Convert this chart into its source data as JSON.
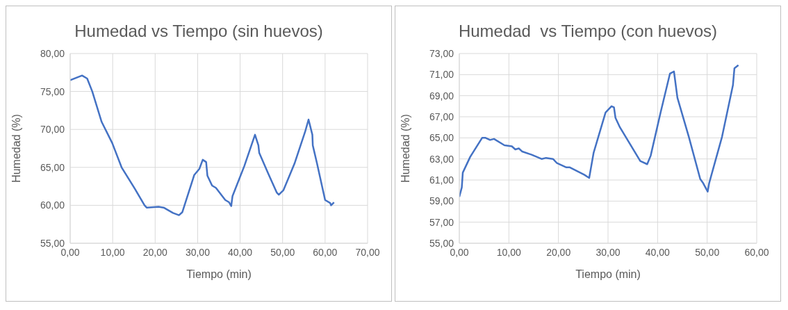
{
  "chart_data": [
    {
      "type": "line",
      "title": "Humedad vs Tiempo (sin huevos)",
      "xlabel": "Tiempo  (min)",
      "ylabel": "Humedad (%)",
      "color": "#4472c4",
      "grid": true,
      "legend": false,
      "marker": "none",
      "line_style": "solid",
      "xlim": [
        0,
        70
      ],
      "xticks": [
        {
          "value": 0,
          "label": "0,00"
        },
        {
          "value": 10,
          "label": "10,00"
        },
        {
          "value": 20,
          "label": "20,00"
        },
        {
          "value": 30,
          "label": "30,00"
        },
        {
          "value": 40,
          "label": "40,00"
        },
        {
          "value": 50,
          "label": "50,00"
        },
        {
          "value": 60,
          "label": "60,00"
        },
        {
          "value": 70,
          "label": "70,00"
        }
      ],
      "ylim": [
        55,
        80
      ],
      "yticks": [
        {
          "value": 55,
          "label": "55,00"
        },
        {
          "value": 60,
          "label": "60,00"
        },
        {
          "value": 65,
          "label": "65,00"
        },
        {
          "value": 70,
          "label": "70,00"
        },
        {
          "value": 75,
          "label": "75,00"
        },
        {
          "value": 80,
          "label": "80,00"
        }
      ],
      "x": [
        0,
        2.8,
        4.0,
        5.2,
        7.4,
        9.9,
        12.1,
        15.2,
        17.5,
        18.0,
        20.8,
        22.0,
        24.2,
        25.6,
        26.4,
        29.2,
        30.4,
        31.2,
        32.0,
        32.3,
        33.4,
        34.3,
        36.5,
        37.4,
        37.9,
        38.2,
        41.0,
        43.5,
        44.3,
        44.5,
        46.6,
        48.6,
        49.1,
        50.2,
        52.8,
        55.3,
        56.1,
        57.0,
        57.1,
        58.1,
        60.0,
        61.2,
        61.4,
        62.1
      ],
      "values": [
        76.5,
        77.1,
        76.7,
        75.0,
        71.0,
        68.2,
        65.0,
        62.2,
        60.0,
        59.7,
        59.8,
        59.7,
        59.0,
        58.7,
        59.1,
        64.0,
        64.8,
        66.0,
        65.7,
        63.9,
        62.6,
        62.3,
        60.7,
        60.4,
        59.9,
        61.2,
        65.2,
        69.3,
        67.9,
        66.9,
        64.2,
        61.7,
        61.4,
        62.0,
        65.5,
        69.7,
        71.3,
        69.3,
        67.9,
        65.5,
        60.7,
        60.3,
        60.0,
        60.4
      ]
    },
    {
      "type": "line",
      "title": "Humedad  vs Tiempo (con huevos)",
      "xlabel": "Tiempo (min)",
      "ylabel": "Humedad (%)",
      "color": "#4472c4",
      "grid": true,
      "legend": false,
      "marker": "none",
      "line_style": "solid",
      "xlim": [
        0,
        60
      ],
      "xticks": [
        {
          "value": 0,
          "label": "0,00"
        },
        {
          "value": 10,
          "label": "10,00"
        },
        {
          "value": 20,
          "label": "20,00"
        },
        {
          "value": 30,
          "label": "30,00"
        },
        {
          "value": 40,
          "label": "40,00"
        },
        {
          "value": 50,
          "label": "50,00"
        },
        {
          "value": 60,
          "label": "60,00"
        }
      ],
      "ylim": [
        55,
        73
      ],
      "yticks": [
        {
          "value": 55,
          "label": "55,00"
        },
        {
          "value": 57,
          "label": "57,00"
        },
        {
          "value": 59,
          "label": "59,00"
        },
        {
          "value": 61,
          "label": "61,00"
        },
        {
          "value": 63,
          "label": "63,00"
        },
        {
          "value": 65,
          "label": "65,00"
        },
        {
          "value": 67,
          "label": "67,00"
        },
        {
          "value": 69,
          "label": "69,00"
        },
        {
          "value": 71,
          "label": "71,00"
        },
        {
          "value": 73,
          "label": "73,00"
        }
      ],
      "x": [
        0,
        0.5,
        0.7,
        2.2,
        4.6,
        5.3,
        6.2,
        7.0,
        9.1,
        10.6,
        11.3,
        12.0,
        12.7,
        14.6,
        16.6,
        17.5,
        18.9,
        19.7,
        21.6,
        22.3,
        25.2,
        26.2,
        27.1,
        29.5,
        30.7,
        31.2,
        31.5,
        32.4,
        36.5,
        37.9,
        38.6,
        40.6,
        42.5,
        43.3,
        44.0,
        46.3,
        48.6,
        49.2,
        50.1,
        50.4,
        53.0,
        55.2,
        55.5,
        56.3
      ],
      "values": [
        59.4,
        60.3,
        61.7,
        63.2,
        65.0,
        65.0,
        64.8,
        64.9,
        64.3,
        64.2,
        63.9,
        64.0,
        63.7,
        63.4,
        63.0,
        63.1,
        63.0,
        62.6,
        62.2,
        62.2,
        61.5,
        61.2,
        63.6,
        67.4,
        68.0,
        67.9,
        66.9,
        66.0,
        62.8,
        62.5,
        63.3,
        67.4,
        71.1,
        71.3,
        68.8,
        65.1,
        61.1,
        60.7,
        59.9,
        60.7,
        65.1,
        70.0,
        71.6,
        71.9
      ]
    }
  ]
}
